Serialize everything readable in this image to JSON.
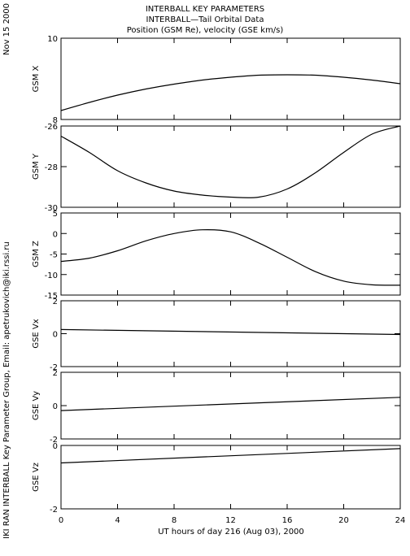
{
  "header": {
    "title_lines": [
      "INTERBALL KEY PARAMETERS",
      "INTERBALL—Tail Orbital Data",
      "Position (GSM Re), velocity (GSE km/s)"
    ],
    "date": "Nov 15 2000",
    "side_credit": "IKI RAN INTERBALL Key Parameter Group, Email: apetrukovich@iki.rssi.ru"
  },
  "colors": {
    "line": "#000000",
    "frame": "#000000",
    "background": "#ffffff"
  },
  "chart_data": {
    "type": "line",
    "xlabel": "UT hours of day 216 (Aug 03), 2000",
    "xlim": [
      0,
      24
    ],
    "xticks": [
      "0",
      "4",
      "8",
      "12",
      "16",
      "20",
      "24"
    ],
    "panels": [
      {
        "ylabel": "GSM X",
        "ylim": [
          8,
          10
        ],
        "yticks": [
          "8",
          "10"
        ],
        "x": [
          0,
          2,
          4,
          6,
          8,
          10,
          12,
          14,
          16,
          18,
          20,
          22,
          24
        ],
        "y": [
          8.22,
          8.42,
          8.6,
          8.75,
          8.87,
          8.97,
          9.04,
          9.09,
          9.1,
          9.09,
          9.04,
          8.97,
          8.88
        ]
      },
      {
        "ylabel": "GSM Y",
        "ylim": [
          -30,
          -26
        ],
        "yticks": [
          "-30",
          "-28",
          "-26"
        ],
        "x": [
          0,
          2,
          4,
          6,
          8,
          10,
          12,
          14,
          16,
          18,
          20,
          22,
          24
        ],
        "y": [
          -26.5,
          -27.3,
          -28.2,
          -28.8,
          -29.2,
          -29.4,
          -29.5,
          -29.5,
          -29.1,
          -28.3,
          -27.3,
          -26.4,
          -26.0
        ]
      },
      {
        "ylabel": "GSM Z",
        "ylim": [
          -15,
          5
        ],
        "yticks": [
          "-15",
          "-10",
          "-5",
          "0",
          "5"
        ],
        "x": [
          0,
          2,
          4,
          6,
          8,
          10,
          12,
          14,
          16,
          18,
          20,
          22,
          24
        ],
        "y": [
          -6.8,
          -6.0,
          -4.2,
          -1.8,
          0.0,
          0.9,
          0.4,
          -2.3,
          -5.8,
          -9.3,
          -11.6,
          -12.5,
          -12.6
        ]
      },
      {
        "ylabel": "GSE Vx",
        "ylim": [
          -2,
          2
        ],
        "yticks": [
          "-2",
          "0",
          "2"
        ],
        "x": [
          0,
          24
        ],
        "y": [
          0.25,
          -0.05
        ]
      },
      {
        "ylabel": "GSE Vy",
        "ylim": [
          -2,
          2
        ],
        "yticks": [
          "-2",
          "0",
          "2"
        ],
        "x": [
          0,
          24
        ],
        "y": [
          -0.3,
          0.5
        ]
      },
      {
        "ylabel": "GSE Vz",
        "ylim": [
          -2,
          0
        ],
        "yticks": [
          "-2",
          "0"
        ],
        "x": [
          0,
          24
        ],
        "y": [
          -0.55,
          -0.1
        ]
      }
    ]
  }
}
